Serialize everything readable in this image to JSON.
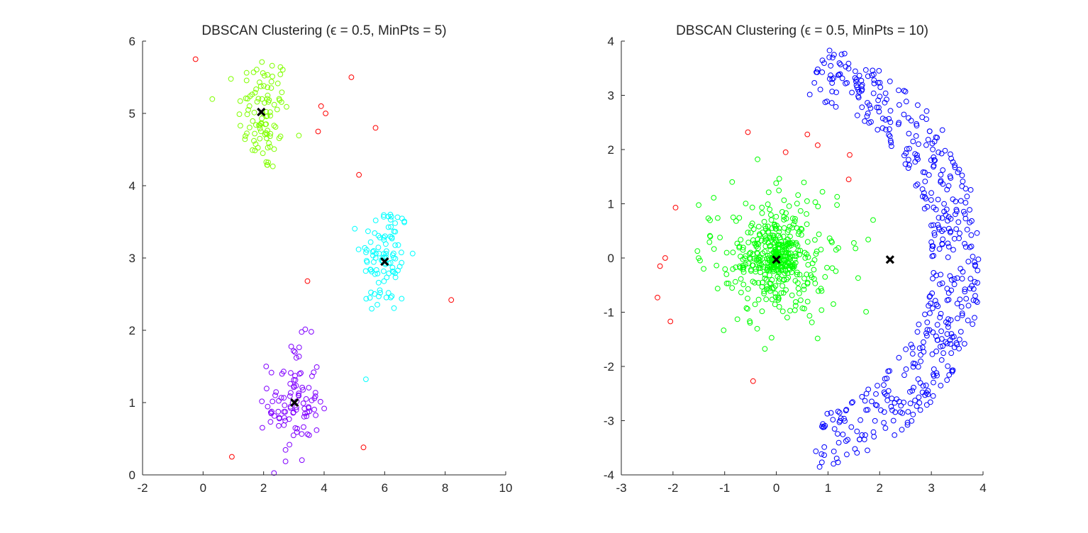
{
  "chart_data": [
    {
      "type": "scatter",
      "title": "DBSCAN Clustering (ϵ = 0.5, MinPts = 5)",
      "xlabel": "",
      "ylabel": "",
      "xlim": [
        -2,
        10
      ],
      "ylim": [
        0,
        6
      ],
      "xticks": [
        "-2",
        "0",
        "2",
        "4",
        "6",
        "8",
        "10"
      ],
      "yticks": [
        "0",
        "1",
        "2",
        "3",
        "4",
        "5",
        "6"
      ],
      "grid": false,
      "clusters": [
        {
          "color": "#80ff00",
          "center": [
            2,
            5
          ],
          "spread": 0.42,
          "count": 100
        },
        {
          "color": "#00ffff",
          "center": [
            6,
            3
          ],
          "spread": 0.4,
          "count": 100
        },
        {
          "color": "#8000ff",
          "center": [
            3,
            1
          ],
          "spread": 0.42,
          "count": 100
        }
      ],
      "noise": {
        "color": "#ff0000",
        "points": [
          [
            -0.25,
            5.75
          ],
          [
            4.9,
            5.5
          ],
          [
            3.9,
            5.1
          ],
          [
            4.05,
            5.0
          ],
          [
            3.8,
            4.75
          ],
          [
            5.7,
            4.8
          ],
          [
            5.15,
            4.15
          ],
          [
            3.45,
            2.68
          ],
          [
            8.2,
            2.42
          ],
          [
            0.95,
            0.25
          ],
          [
            5.3,
            0.38
          ]
        ]
      },
      "centroids": [
        [
          1.92,
          5.02
        ],
        [
          6.0,
          2.95
        ],
        [
          3.02,
          1.0
        ]
      ]
    },
    {
      "type": "scatter",
      "title": "DBSCAN Clustering (ϵ = 0.5, MinPts = 10)",
      "xlabel": "",
      "ylabel": "",
      "xlim": [
        -3,
        4
      ],
      "ylim": [
        -4,
        4
      ],
      "xticks": [
        "-3",
        "-2",
        "-1",
        "0",
        "1",
        "2",
        "3",
        "4"
      ],
      "yticks": [
        "-4",
        "-3",
        "-2",
        "-1",
        "0",
        "1",
        "2",
        "3",
        "4"
      ],
      "grid": false,
      "clusters": [
        {
          "color": "#00ff00",
          "shape": "disk",
          "center": [
            0,
            0
          ],
          "spread": 0.72,
          "count": 500
        },
        {
          "color": "#0000ff",
          "shape": "ring-arc",
          "center": [
            0,
            0
          ],
          "rmin": 3.0,
          "rmax": 4.0,
          "angle_deg": [
            -78,
            78
          ],
          "count": 500
        }
      ],
      "noise": {
        "color": "#ff0000",
        "points": [
          [
            -0.55,
            2.32
          ],
          [
            0.6,
            2.28
          ],
          [
            0.18,
            1.95
          ],
          [
            0.8,
            2.08
          ],
          [
            1.42,
            1.9
          ],
          [
            1.4,
            1.45
          ],
          [
            -1.95,
            0.93
          ],
          [
            -2.15,
            0.0
          ],
          [
            -2.25,
            -0.15
          ],
          [
            -2.3,
            -0.73
          ],
          [
            -2.05,
            -1.17
          ],
          [
            -0.45,
            -2.27
          ]
        ]
      },
      "centroids": [
        [
          0.0,
          -0.03
        ],
        [
          2.2,
          -0.03
        ]
      ]
    }
  ]
}
